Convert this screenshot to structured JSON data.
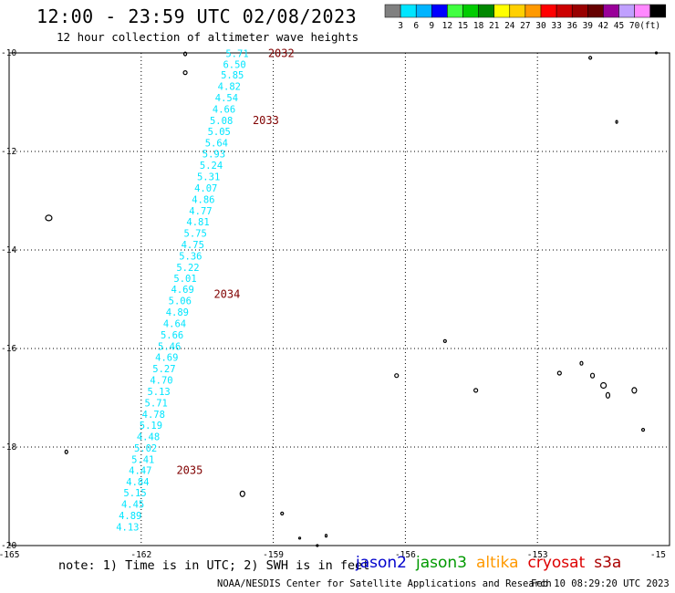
{
  "header": {
    "title": "12:00 - 23:59 UTC 02/08/2023",
    "subtitle": "12 hour collection of altimeter wave heights"
  },
  "colorbar": {
    "colors": [
      "#808080",
      "#00e5ff",
      "#00b4ff",
      "#0000ff",
      "#40ff40",
      "#00cc00",
      "#008800",
      "#ffff00",
      "#ffd000",
      "#ff9900",
      "#ff0000",
      "#cc0000",
      "#990000",
      "#660000",
      "#990099",
      "#c0a0ff",
      "#ff88ff",
      "#000000"
    ],
    "labels": [
      "3",
      "6",
      "9",
      "12",
      "15",
      "18",
      "21",
      "24",
      "27",
      "30",
      "33",
      "36",
      "39",
      "42",
      "45",
      "70",
      "(ft)"
    ]
  },
  "chart_data": {
    "type": "scatter",
    "xlabel": "",
    "ylabel": "",
    "xlim": [
      -165,
      -150
    ],
    "ylim": [
      -20,
      -10
    ],
    "x_ticks": [
      "-165",
      "-162",
      "-159",
      "-156",
      "-153",
      "-15"
    ],
    "y_ticks": [
      "-10",
      "-12",
      "-14",
      "-16",
      "-18",
      "-20"
    ],
    "grid": true,
    "track_color": "#00e5ff",
    "time_label_color": "#800000",
    "swh_labels": [
      {
        "lon": -159.82,
        "lat": -10.01,
        "text": "5.71"
      },
      {
        "lon": -159.88,
        "lat": -10.23,
        "text": "6.50"
      },
      {
        "lon": -159.93,
        "lat": -10.44,
        "text": "5.85"
      },
      {
        "lon": -160.0,
        "lat": -10.68,
        "text": "4.82"
      },
      {
        "lon": -160.06,
        "lat": -10.91,
        "text": "4.54"
      },
      {
        "lon": -160.12,
        "lat": -11.14,
        "text": "4.66"
      },
      {
        "lon": -160.18,
        "lat": -11.37,
        "text": "5.08"
      },
      {
        "lon": -160.23,
        "lat": -11.59,
        "text": "5.05"
      },
      {
        "lon": -160.29,
        "lat": -11.82,
        "text": "5.64"
      },
      {
        "lon": -160.35,
        "lat": -12.05,
        "text": "5.93"
      },
      {
        "lon": -160.41,
        "lat": -12.28,
        "text": "5.24"
      },
      {
        "lon": -160.47,
        "lat": -12.51,
        "text": "5.31"
      },
      {
        "lon": -160.53,
        "lat": -12.74,
        "text": "4.07"
      },
      {
        "lon": -160.59,
        "lat": -12.97,
        "text": "4.86"
      },
      {
        "lon": -160.65,
        "lat": -13.2,
        "text": "4.77"
      },
      {
        "lon": -160.71,
        "lat": -13.43,
        "text": "4.81"
      },
      {
        "lon": -160.77,
        "lat": -13.66,
        "text": "5.75"
      },
      {
        "lon": -160.83,
        "lat": -13.89,
        "text": "4.75"
      },
      {
        "lon": -160.88,
        "lat": -14.12,
        "text": "5.36"
      },
      {
        "lon": -160.94,
        "lat": -14.35,
        "text": "5.22"
      },
      {
        "lon": -161.0,
        "lat": -14.57,
        "text": "5.01"
      },
      {
        "lon": -161.06,
        "lat": -14.8,
        "text": "4.69"
      },
      {
        "lon": -161.12,
        "lat": -15.03,
        "text": "5.06"
      },
      {
        "lon": -161.18,
        "lat": -15.26,
        "text": "4.89"
      },
      {
        "lon": -161.24,
        "lat": -15.49,
        "text": "4.64"
      },
      {
        "lon": -161.3,
        "lat": -15.72,
        "text": "5.66"
      },
      {
        "lon": -161.36,
        "lat": -15.95,
        "text": "5.46"
      },
      {
        "lon": -161.42,
        "lat": -16.18,
        "text": "4.69"
      },
      {
        "lon": -161.48,
        "lat": -16.41,
        "text": "5.27"
      },
      {
        "lon": -161.54,
        "lat": -16.64,
        "text": "4.70"
      },
      {
        "lon": -161.6,
        "lat": -16.87,
        "text": "5.13"
      },
      {
        "lon": -161.66,
        "lat": -17.1,
        "text": "5.71"
      },
      {
        "lon": -161.72,
        "lat": -17.33,
        "text": "4.78"
      },
      {
        "lon": -161.78,
        "lat": -17.56,
        "text": "5.19"
      },
      {
        "lon": -161.84,
        "lat": -17.79,
        "text": "4.48"
      },
      {
        "lon": -161.9,
        "lat": -18.02,
        "text": "5.02"
      },
      {
        "lon": -161.96,
        "lat": -18.25,
        "text": "5.41"
      },
      {
        "lon": -162.02,
        "lat": -18.47,
        "text": "4.47"
      },
      {
        "lon": -162.08,
        "lat": -18.7,
        "text": "4.84"
      },
      {
        "lon": -162.14,
        "lat": -18.93,
        "text": "5.15"
      },
      {
        "lon": -162.19,
        "lat": -19.16,
        "text": "4.45"
      },
      {
        "lon": -162.25,
        "lat": -19.39,
        "text": "4.89"
      },
      {
        "lon": -162.31,
        "lat": -19.62,
        "text": "4.13"
      }
    ],
    "time_labels": [
      {
        "lon": -158.82,
        "lat": -10.01,
        "text": "2032"
      },
      {
        "lon": -159.17,
        "lat": -11.37,
        "text": "2033"
      },
      {
        "lon": -160.05,
        "lat": -14.9,
        "text": "2034"
      },
      {
        "lon": -160.9,
        "lat": -18.47,
        "text": "2035"
      }
    ]
  },
  "footer": {
    "note": "note: 1) Time is in UTC; 2) SWH is in feet",
    "satellites": [
      {
        "name": "jason2",
        "color": "#0000cc"
      },
      {
        "name": "jason3",
        "color": "#009900"
      },
      {
        "name": "altika",
        "color": "#ff9900"
      },
      {
        "name": "cryosat",
        "color": "#dd0000"
      },
      {
        "name": "s3a",
        "color": "#aa0000"
      }
    ],
    "credit": "NOAA/NESDIS Center for Satellite Applications and Research",
    "timestamp": "Feb 10 08:29:20 UTC 2023"
  }
}
